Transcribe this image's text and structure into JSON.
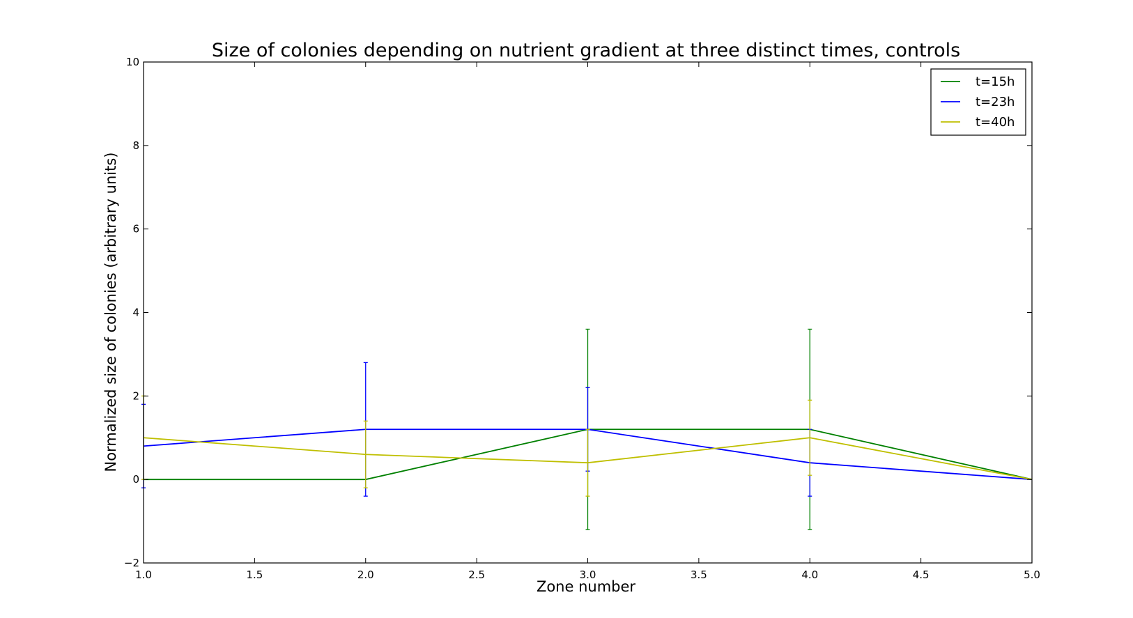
{
  "chart_data": {
    "type": "line",
    "title": "Size of colonies depending on nutrient gradient at three distinct times, controls",
    "xlabel": "Zone number",
    "ylabel": "Normalized size of colonies (arbitrary units)",
    "xlim": [
      1.0,
      5.0
    ],
    "ylim": [
      -2,
      10
    ],
    "x_ticks": [
      "1.0",
      "1.5",
      "2.0",
      "2.5",
      "3.0",
      "3.5",
      "4.0",
      "4.5",
      "5.0"
    ],
    "y_ticks": [
      "−2",
      "0",
      "2",
      "4",
      "6",
      "8",
      "10"
    ],
    "grid": false,
    "legend_position": "top-right",
    "x": [
      1,
      2,
      3,
      4,
      5
    ],
    "series": [
      {
        "name": "t=15h",
        "color": "#008000",
        "values": [
          0,
          0,
          1.2,
          1.2,
          0
        ],
        "error_low": [
          0,
          0,
          -1.2,
          -1.2,
          0
        ],
        "error_high": [
          0,
          0,
          3.6,
          3.6,
          0
        ]
      },
      {
        "name": "t=23h",
        "color": "#0000ff",
        "values": [
          0.8,
          1.2,
          1.2,
          0.4,
          0
        ],
        "error_low": [
          -0.2,
          -0.4,
          0.2,
          -0.4,
          0
        ],
        "error_high": [
          1.8,
          2.8,
          2.2,
          1.2,
          0
        ]
      },
      {
        "name": "t=40h",
        "color": "#bfbf00",
        "values": [
          1.0,
          0.6,
          0.4,
          1.0,
          0
        ],
        "error_low": [
          0.0,
          -0.2,
          -0.4,
          0.1,
          0
        ],
        "error_high": [
          2.0,
          1.4,
          1.2,
          1.9,
          0
        ]
      }
    ]
  }
}
